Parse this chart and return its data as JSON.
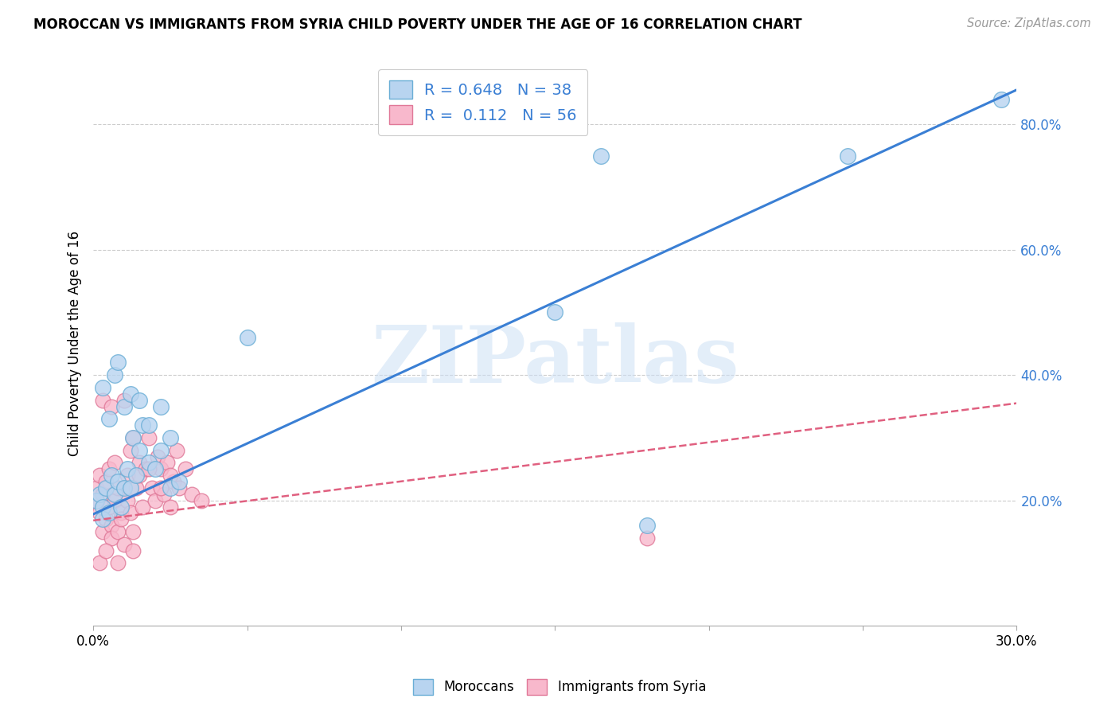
{
  "title": "MOROCCAN VS IMMIGRANTS FROM SYRIA CHILD POVERTY UNDER THE AGE OF 16 CORRELATION CHART",
  "source": "Source: ZipAtlas.com",
  "ylabel": "Child Poverty Under the Age of 16",
  "xlim": [
    0,
    0.3
  ],
  "ylim": [
    0,
    0.9
  ],
  "xticks": [
    0.0,
    0.05,
    0.1,
    0.15,
    0.2,
    0.25,
    0.3
  ],
  "xtick_labels": [
    "0.0%",
    "",
    "",
    "",
    "",
    "",
    "30.0%"
  ],
  "ytick_labels_right": [
    "20.0%",
    "40.0%",
    "60.0%",
    "80.0%"
  ],
  "ytick_values_right": [
    0.2,
    0.4,
    0.6,
    0.8
  ],
  "watermark": "ZIPatlas",
  "blue_color": "#b8d4f0",
  "blue_edge": "#6aaed6",
  "pink_color": "#f8b8cc",
  "pink_edge": "#e07898",
  "legend_r1": "R = 0.648",
  "legend_n1": "N = 38",
  "legend_r2": "R =  0.112",
  "legend_n2": "N = 56",
  "blue_line_color": "#3a7fd4",
  "pink_line_color": "#e06080",
  "blue_line_x": [
    0.0,
    0.3
  ],
  "blue_line_y": [
    0.178,
    0.855
  ],
  "pink_line_x": [
    0.0,
    0.3
  ],
  "pink_line_y": [
    0.168,
    0.355
  ],
  "moroccans_x": [
    0.001,
    0.002,
    0.003,
    0.003,
    0.004,
    0.005,
    0.006,
    0.007,
    0.008,
    0.009,
    0.01,
    0.011,
    0.012,
    0.013,
    0.014,
    0.015,
    0.016,
    0.018,
    0.02,
    0.022,
    0.025,
    0.028,
    0.003,
    0.005,
    0.007,
    0.008,
    0.01,
    0.012,
    0.015,
    0.018,
    0.022,
    0.025,
    0.05,
    0.15,
    0.165,
    0.245,
    0.18,
    0.295
  ],
  "moroccans_y": [
    0.2,
    0.21,
    0.19,
    0.17,
    0.22,
    0.18,
    0.24,
    0.21,
    0.23,
    0.19,
    0.22,
    0.25,
    0.22,
    0.3,
    0.24,
    0.28,
    0.32,
    0.26,
    0.25,
    0.35,
    0.22,
    0.23,
    0.38,
    0.33,
    0.4,
    0.42,
    0.35,
    0.37,
    0.36,
    0.32,
    0.28,
    0.3,
    0.46,
    0.5,
    0.75,
    0.75,
    0.16,
    0.84
  ],
  "syria_x": [
    0.001,
    0.001,
    0.002,
    0.002,
    0.003,
    0.003,
    0.004,
    0.004,
    0.005,
    0.005,
    0.006,
    0.006,
    0.007,
    0.007,
    0.008,
    0.008,
    0.009,
    0.009,
    0.01,
    0.01,
    0.011,
    0.011,
    0.012,
    0.012,
    0.013,
    0.013,
    0.014,
    0.015,
    0.015,
    0.016,
    0.017,
    0.018,
    0.019,
    0.02,
    0.021,
    0.022,
    0.023,
    0.024,
    0.025,
    0.026,
    0.027,
    0.028,
    0.03,
    0.032,
    0.003,
    0.006,
    0.01,
    0.018,
    0.025,
    0.035,
    0.002,
    0.004,
    0.008,
    0.013,
    0.022,
    0.18
  ],
  "syria_y": [
    0.2,
    0.22,
    0.18,
    0.24,
    0.15,
    0.21,
    0.17,
    0.23,
    0.19,
    0.25,
    0.16,
    0.14,
    0.2,
    0.26,
    0.15,
    0.22,
    0.18,
    0.17,
    0.13,
    0.22,
    0.2,
    0.24,
    0.18,
    0.28,
    0.15,
    0.3,
    0.22,
    0.24,
    0.26,
    0.19,
    0.25,
    0.3,
    0.22,
    0.2,
    0.27,
    0.25,
    0.21,
    0.26,
    0.19,
    0.23,
    0.28,
    0.22,
    0.25,
    0.21,
    0.36,
    0.35,
    0.36,
    0.25,
    0.24,
    0.2,
    0.1,
    0.12,
    0.1,
    0.12,
    0.22,
    0.14
  ]
}
